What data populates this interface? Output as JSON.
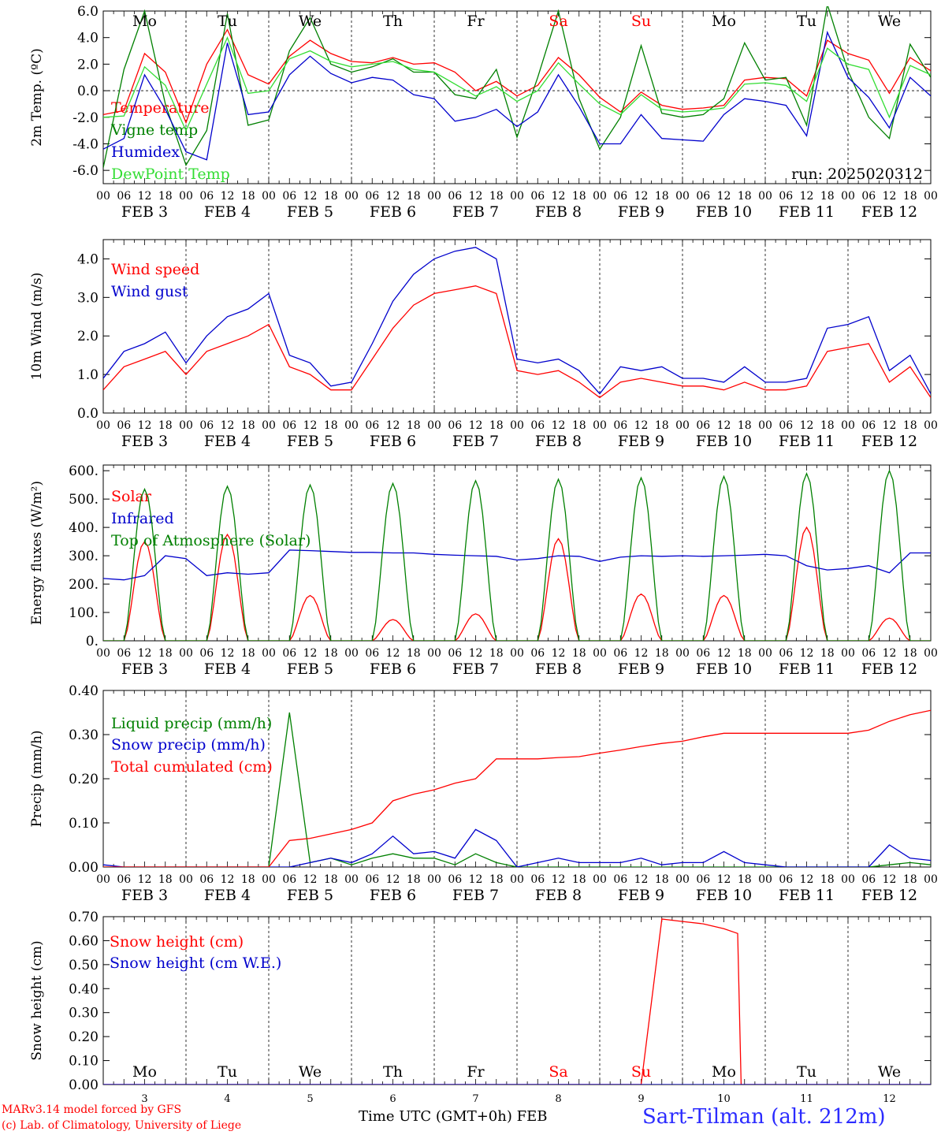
{
  "run_label": "run: 2025020312",
  "xaxis": {
    "hour_ticks": [
      "00",
      "06",
      "12",
      "18"
    ],
    "end_tick": "00",
    "date_labels": [
      "FEB  3",
      "FEB  4",
      "FEB  5",
      "FEB  6",
      "FEB  7",
      "FEB  8",
      "FEB  9",
      "FEB 10",
      "FEB 11",
      "FEB 12"
    ],
    "day_names": [
      "Mo",
      "Tu",
      "We",
      "Th",
      "Fr",
      "Sa",
      "Su",
      "Mo",
      "Tu",
      "We"
    ],
    "day_colors": [
      "#000000",
      "#000000",
      "#000000",
      "#000000",
      "#000000",
      "#ff0000",
      "#ff0000",
      "#000000",
      "#000000",
      "#000000"
    ],
    "day_numbers": [
      "3",
      "4",
      "5",
      "6",
      "7",
      "8",
      "9",
      "10",
      "11",
      "12"
    ],
    "title": "Time UTC (GMT+0h)",
    "month": "FEB"
  },
  "footer": {
    "credit1": "MARv3.14 model forced by GFS",
    "credit2": "(c) Lab. of Climatology, University of Liege",
    "station": "Sart-Tilman (alt. 212m)"
  },
  "chart_data": [
    {
      "type": "line",
      "ylabel": "2m Temp. (ºC)",
      "ylim": [
        -7,
        6
      ],
      "yticks": [
        6.0,
        4.0,
        2.0,
        0.0,
        -2.0,
        -4.0,
        -6.0
      ],
      "yticklabels": [
        "6.0",
        "4.0",
        "2.0",
        "0.0",
        "-2.0",
        "-4.0",
        "-6.0"
      ],
      "zero_line": true,
      "x_hours": [
        0,
        6,
        12,
        18,
        24,
        30,
        36,
        42,
        48,
        54,
        60,
        66,
        72,
        78,
        84,
        90,
        96,
        102,
        108,
        114,
        120,
        126,
        132,
        138,
        144,
        150,
        156,
        162,
        168,
        174,
        180,
        186,
        192,
        198,
        204,
        210,
        216,
        222,
        228,
        234,
        240
      ],
      "series": [
        {
          "name": "Temperature",
          "color": "#ff0000",
          "values": [
            -1.8,
            -1.5,
            2.8,
            1.4,
            -2.4,
            2.0,
            4.6,
            1.2,
            0.5,
            2.6,
            3.8,
            2.8,
            2.2,
            2.1,
            2.5,
            2.0,
            2.1,
            1.4,
            0.0,
            0.7,
            -0.4,
            0.4,
            2.5,
            1.2,
            -0.5,
            -1.6,
            -0.1,
            -1.1,
            -1.4,
            -1.3,
            -1.1,
            0.8,
            1.0,
            0.9,
            -0.4,
            3.8,
            2.8,
            2.3,
            -0.2,
            2.5,
            1.5
          ]
        },
        {
          "name": "Vigne temp",
          "color": "#008000",
          "values": [
            -5.8,
            1.6,
            6.0,
            -1.0,
            -5.6,
            -3.0,
            5.8,
            -2.6,
            -2.2,
            3.0,
            5.5,
            2.0,
            1.4,
            1.8,
            2.4,
            1.4,
            1.4,
            -0.3,
            -0.6,
            1.6,
            -3.5,
            1.0,
            6.0,
            -0.6,
            -4.4,
            -2.0,
            3.4,
            -1.7,
            -2.0,
            -1.8,
            -0.6,
            3.6,
            0.8,
            1.0,
            -2.6,
            6.5,
            1.5,
            -2.0,
            -3.6,
            3.5,
            1.0
          ]
        },
        {
          "name": "Humidex",
          "color": "#0000cc",
          "values": [
            -4.4,
            -3.6,
            1.2,
            -1.4,
            -4.6,
            -5.2,
            3.6,
            -1.8,
            -1.6,
            1.2,
            2.6,
            1.3,
            0.6,
            1.0,
            0.8,
            -0.3,
            -0.6,
            -2.3,
            -2.0,
            -1.4,
            -2.7,
            -1.6,
            1.2,
            -1.2,
            -4.0,
            -4.0,
            -1.8,
            -3.6,
            -3.7,
            -3.8,
            -1.8,
            -0.6,
            -0.8,
            -1.1,
            -3.4,
            4.4,
            1.0,
            -0.5,
            -2.8,
            1.0,
            -0.4
          ]
        },
        {
          "name": "DewPoint Temp",
          "color": "#33dd33",
          "values": [
            -2.0,
            -1.9,
            1.8,
            0.4,
            -3.0,
            0.5,
            4.0,
            -0.2,
            0.0,
            2.4,
            3.0,
            2.2,
            1.8,
            2.0,
            2.2,
            1.6,
            1.4,
            0.5,
            -0.4,
            0.3,
            -0.8,
            0.0,
            2.1,
            0.5,
            -1.0,
            -1.8,
            -0.3,
            -1.4,
            -1.6,
            -1.5,
            -1.3,
            0.5,
            0.6,
            0.4,
            -0.8,
            3.2,
            2.0,
            1.6,
            -2.0,
            1.9,
            1.2
          ]
        }
      ]
    },
    {
      "type": "line",
      "ylabel": "10m Wind (m/s)",
      "ylim": [
        0,
        4.5
      ],
      "yticks": [
        0,
        1,
        2,
        3,
        4
      ],
      "yticklabels": [
        "0.0",
        "1.0",
        "2.0",
        "3.0",
        "4.0"
      ],
      "x_hours": [
        0,
        6,
        12,
        18,
        24,
        30,
        36,
        42,
        48,
        54,
        60,
        66,
        72,
        78,
        84,
        90,
        96,
        102,
        108,
        114,
        120,
        126,
        132,
        138,
        144,
        150,
        156,
        162,
        168,
        174,
        180,
        186,
        192,
        198,
        204,
        210,
        216,
        222,
        228,
        234,
        240
      ],
      "series": [
        {
          "name": "Wind speed",
          "color": "#ff0000",
          "values": [
            0.6,
            1.2,
            1.4,
            1.6,
            1.0,
            1.6,
            1.8,
            2.0,
            2.3,
            1.2,
            1.0,
            0.6,
            0.6,
            1.4,
            2.2,
            2.8,
            3.1,
            3.2,
            3.3,
            3.1,
            1.1,
            1.0,
            1.1,
            0.8,
            0.4,
            0.8,
            0.9,
            0.8,
            0.7,
            0.7,
            0.6,
            0.8,
            0.6,
            0.6,
            0.7,
            1.6,
            1.7,
            1.8,
            0.8,
            1.2,
            0.4
          ]
        },
        {
          "name": "Wind gust",
          "color": "#0000cc",
          "values": [
            0.9,
            1.6,
            1.8,
            2.1,
            1.3,
            2.0,
            2.5,
            2.7,
            3.1,
            1.5,
            1.3,
            0.7,
            0.8,
            1.8,
            2.9,
            3.6,
            4.0,
            4.2,
            4.3,
            4.0,
            1.4,
            1.3,
            1.4,
            1.1,
            0.5,
            1.2,
            1.1,
            1.2,
            0.9,
            0.9,
            0.8,
            1.2,
            0.8,
            0.8,
            0.9,
            2.2,
            2.3,
            2.5,
            1.1,
            1.5,
            0.5
          ]
        }
      ]
    },
    {
      "type": "line",
      "ylabel": "Energy fluxes (W/m²)",
      "ylim": [
        0,
        620
      ],
      "yticks": [
        0,
        100,
        200,
        300,
        400,
        500,
        600
      ],
      "yticklabels": [
        "0.",
        "100.",
        "200.",
        "300.",
        "400.",
        "500.",
        "600."
      ],
      "x_hours": [
        0,
        6,
        12,
        18,
        24,
        30,
        36,
        42,
        48,
        54,
        60,
        66,
        72,
        78,
        84,
        90,
        96,
        102,
        108,
        114,
        120,
        126,
        132,
        138,
        144,
        150,
        156,
        162,
        168,
        174,
        180,
        186,
        192,
        198,
        204,
        210,
        216,
        222,
        228,
        234,
        240
      ],
      "series": [
        {
          "name": "Solar",
          "color": "#ff0000",
          "peaks": [
            350,
            375,
            160,
            75,
            95,
            360,
            165,
            160,
            400,
            80
          ],
          "values": [
            0,
            0,
            350,
            0,
            0,
            0,
            375,
            0,
            0,
            0,
            160,
            0,
            0,
            0,
            75,
            0,
            0,
            0,
            95,
            0,
            0,
            0,
            360,
            0,
            0,
            0,
            165,
            0,
            0,
            0,
            160,
            0,
            0,
            0,
            400,
            0,
            0,
            0,
            80,
            0,
            0
          ]
        },
        {
          "name": "Infrared",
          "color": "#0000cc",
          "values": [
            220,
            215,
            230,
            300,
            290,
            230,
            240,
            235,
            240,
            320,
            318,
            315,
            312,
            312,
            310,
            310,
            305,
            302,
            300,
            298,
            285,
            290,
            300,
            298,
            280,
            295,
            300,
            298,
            300,
            298,
            300,
            302,
            305,
            300,
            265,
            250,
            255,
            265,
            240,
            310,
            310
          ]
        },
        {
          "name": "Top of Atmosphere (Solar)",
          "color": "#008000",
          "peaks": [
            535,
            545,
            550,
            555,
            565,
            570,
            575,
            580,
            590,
            600
          ],
          "values": [
            0,
            0,
            535,
            0,
            0,
            0,
            545,
            0,
            0,
            0,
            550,
            0,
            0,
            0,
            555,
            0,
            0,
            0,
            565,
            0,
            0,
            0,
            570,
            0,
            0,
            0,
            575,
            0,
            0,
            0,
            580,
            0,
            0,
            0,
            590,
            0,
            0,
            0,
            600,
            0,
            0
          ]
        }
      ]
    },
    {
      "type": "line",
      "ylabel": "Precip (mm/h)",
      "ylim": [
        0,
        0.4
      ],
      "yticks": [
        0,
        0.1,
        0.2,
        0.3,
        0.4
      ],
      "yticklabels": [
        "0.00",
        "0.10",
        "0.20",
        "0.30",
        "0.40"
      ],
      "x_hours": [
        0,
        6,
        12,
        18,
        24,
        30,
        36,
        42,
        48,
        54,
        60,
        66,
        72,
        78,
        84,
        90,
        96,
        102,
        108,
        114,
        120,
        126,
        132,
        138,
        144,
        150,
        156,
        162,
        168,
        174,
        180,
        186,
        192,
        198,
        204,
        210,
        216,
        222,
        228,
        234,
        240
      ],
      "series": [
        {
          "name": "Liquid precip (mm/h)",
          "color": "#008000",
          "values": [
            0,
            0,
            0,
            0,
            0,
            0,
            0,
            0,
            0,
            0.35,
            0.01,
            0.02,
            0.005,
            0.02,
            0.03,
            0.02,
            0.02,
            0.005,
            0.03,
            0.01,
            0,
            0,
            0,
            0,
            0,
            0,
            0,
            0,
            0,
            0,
            0,
            0,
            0,
            0,
            0,
            0,
            0,
            0,
            0.005,
            0.01,
            0.005
          ]
        },
        {
          "name": "Snow precip (mm/h)",
          "color": "#0000cc",
          "values": [
            0.005,
            0,
            0,
            0,
            0,
            0,
            0,
            0,
            0,
            0,
            0.01,
            0.02,
            0.01,
            0.03,
            0.07,
            0.03,
            0.035,
            0.02,
            0.085,
            0.06,
            0,
            0.01,
            0.02,
            0.01,
            0.01,
            0.01,
            0.02,
            0.005,
            0.01,
            0.01,
            0.035,
            0.01,
            0.005,
            0,
            0,
            0,
            0,
            0,
            0.05,
            0.02,
            0.015
          ]
        },
        {
          "name": "Total cumulated (cm)",
          "color": "#ff0000",
          "values": [
            0,
            0,
            0,
            0,
            0,
            0,
            0,
            0,
            0,
            0.06,
            0.065,
            0.075,
            0.085,
            0.1,
            0.15,
            0.165,
            0.175,
            0.19,
            0.2,
            0.245,
            0.245,
            0.245,
            0.248,
            0.25,
            0.258,
            0.265,
            0.273,
            0.28,
            0.285,
            0.295,
            0.303,
            0.303,
            0.303,
            0.303,
            0.303,
            0.303,
            0.303,
            0.31,
            0.33,
            0.345,
            0.355
          ]
        }
      ]
    },
    {
      "type": "line",
      "ylabel": "Snow height (cm)",
      "ylim": [
        0,
        0.7
      ],
      "yticks": [
        0,
        0.1,
        0.2,
        0.3,
        0.4,
        0.5,
        0.6,
        0.7
      ],
      "yticklabels": [
        "0.00",
        "0.10",
        "0.20",
        "0.30",
        "0.40",
        "0.50",
        "0.60",
        "0.70"
      ],
      "x_hours": [
        0,
        24,
        48,
        72,
        96,
        120,
        144,
        156,
        162,
        168,
        174,
        180,
        184,
        185,
        240
      ],
      "series": [
        {
          "name": "Snow height (cm)",
          "color": "#ff0000",
          "values": [
            0,
            0,
            0,
            0,
            0,
            0,
            0,
            0,
            0.69,
            0.68,
            0.67,
            0.65,
            0.63,
            0,
            0
          ]
        },
        {
          "name": "Snow height (cm W.E.)",
          "color": "#0000cc",
          "values": [
            0,
            0,
            0,
            0,
            0,
            0,
            0,
            0,
            0,
            0,
            0,
            0,
            0,
            0,
            0
          ]
        }
      ]
    }
  ]
}
